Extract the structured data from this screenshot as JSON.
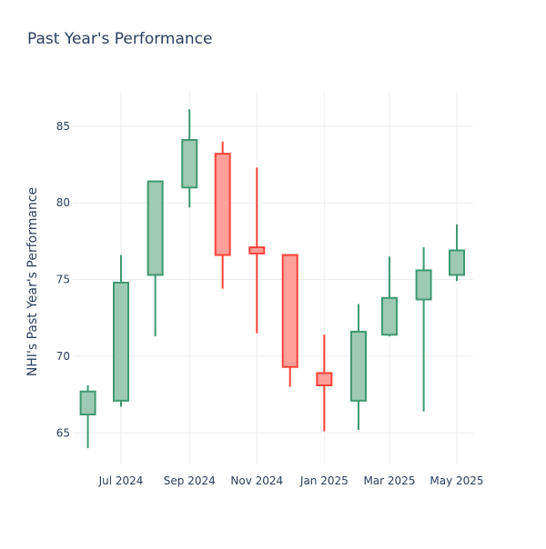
{
  "chart_data": {
    "type": "candlestick",
    "title": "Past Year's Performance",
    "xlabel": "",
    "ylabel": "NHI's Past Year's Performance",
    "ylim": [
      63,
      87.3
    ],
    "yticks": [
      65,
      70,
      75,
      80,
      85
    ],
    "xticks": [
      {
        "label": "Jul 2024",
        "date": "2024-07-01"
      },
      {
        "label": "Sep 2024",
        "date": "2024-09-01"
      },
      {
        "label": "Nov 2024",
        "date": "2024-11-01"
      },
      {
        "label": "Jan 2025",
        "date": "2025-01-01"
      },
      {
        "label": "Mar 2025",
        "date": "2025-03-01"
      },
      {
        "label": "May 2025",
        "date": "2025-05-01"
      }
    ],
    "grid": true,
    "increasing_color": "#3d9970",
    "increasing_fill": "#9ecab5",
    "decreasing_color": "#ff4136",
    "decreasing_fill": "#ffa09b",
    "candles": [
      {
        "date": "2024-06-01",
        "open": 66.2,
        "high": 68.1,
        "low": 64.0,
        "close": 67.7
      },
      {
        "date": "2024-07-01",
        "open": 67.1,
        "high": 76.6,
        "low": 66.7,
        "close": 74.8
      },
      {
        "date": "2024-08-01",
        "open": 75.3,
        "high": 81.4,
        "low": 71.3,
        "close": 81.4
      },
      {
        "date": "2024-09-01",
        "open": 81.0,
        "high": 86.1,
        "low": 79.7,
        "close": 84.1
      },
      {
        "date": "2024-10-01",
        "open": 83.2,
        "high": 84.0,
        "low": 74.4,
        "close": 76.6
      },
      {
        "date": "2024-11-01",
        "open": 77.1,
        "high": 82.3,
        "low": 71.5,
        "close": 76.7
      },
      {
        "date": "2024-12-01",
        "open": 76.6,
        "high": 76.6,
        "low": 68.0,
        "close": 69.3
      },
      {
        "date": "2025-01-01",
        "open": 68.9,
        "high": 71.4,
        "low": 65.1,
        "close": 68.1
      },
      {
        "date": "2025-02-01",
        "open": 67.1,
        "high": 73.4,
        "low": 65.2,
        "close": 71.6
      },
      {
        "date": "2025-03-01",
        "open": 71.4,
        "high": 76.5,
        "low": 71.3,
        "close": 73.8
      },
      {
        "date": "2025-04-01",
        "open": 73.7,
        "high": 77.1,
        "low": 66.4,
        "close": 75.6
      },
      {
        "date": "2025-05-01",
        "open": 75.3,
        "high": 78.6,
        "low": 74.9,
        "close": 76.9
      }
    ]
  }
}
